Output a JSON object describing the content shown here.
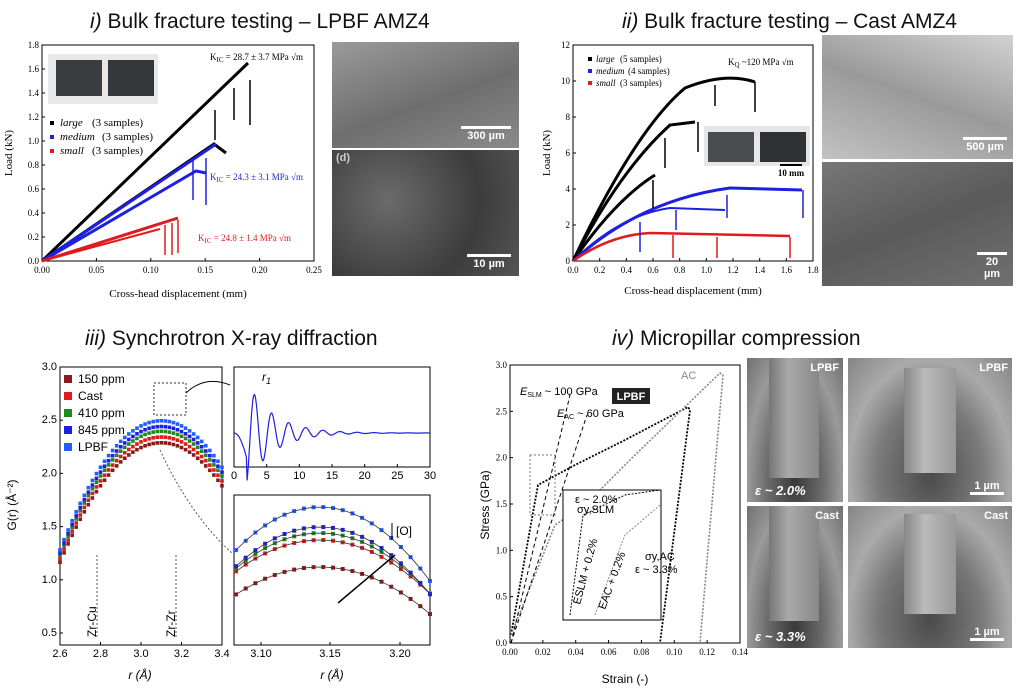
{
  "titles": {
    "p1_num": "i)",
    "p1_text": "Bulk fracture testing – LPBF AMZ4",
    "p2_num": "ii)",
    "p2_text": "Bulk fracture testing – Cast AMZ4",
    "p3_num": "iii)",
    "p3_text": "Synchrotron X-ray diffraction",
    "p4_num": "iv)",
    "p4_text": "Micropillar compression"
  },
  "panel1": {
    "xlabel": "Cross-head displacement (mm)",
    "ylabel": "Load (kN)",
    "xticks": [
      "0.00",
      "0.05",
      "0.10",
      "0.15",
      "0.20",
      "0.25"
    ],
    "yticks": [
      "0.0",
      "0.2",
      "0.4",
      "0.6",
      "0.8",
      "1.0",
      "1.2",
      "1.4",
      "1.6",
      "1.8"
    ],
    "legend": [
      {
        "name": "large",
        "suffix": " (3 samples)",
        "color": "#000000"
      },
      {
        "name": "medium",
        "suffix": " (3 samples)",
        "color": "#1f1fe0"
      },
      {
        "name": "small",
        "suffix": " (3 samples)",
        "color": "#e01b1b"
      }
    ],
    "k1_large": "K",
    "k1_large_sub": "IC",
    "k1_large_val": " = 28.7 ± 3.7 MPa √m",
    "k1_medium_val": " = 24.3 ± 3.1 MPa √m",
    "k1_small_val": " = 24.8 ± 1.4 MPa √m",
    "sem_top_scale": "300 µm",
    "sem_bottom_scale": "10 µm",
    "sem_bottom_tag": "(d)"
  },
  "panel2": {
    "xlabel": "Cross-head displacement (mm)",
    "ylabel": "Load (kN)",
    "xticks": [
      "0.0",
      "0.2",
      "0.4",
      "0.6",
      "0.8",
      "1.0",
      "1.2",
      "1.4",
      "1.6",
      "1.8"
    ],
    "yticks": [
      "0",
      "2",
      "4",
      "6",
      "8",
      "10",
      "12"
    ],
    "legend": [
      {
        "name": "large",
        "suffix": " (5 samples)",
        "color": "#000000"
      },
      {
        "name": "medium",
        "suffix": " (4 samples)",
        "color": "#1f1fe0"
      },
      {
        "name": "small",
        "suffix": " (3 samples)",
        "color": "#e01b1b"
      }
    ],
    "kq": "K",
    "kq_sub": "Q",
    "kq_val": " ~120 MPa √m",
    "photo_scale": "10 mm",
    "sem_top_scale": "500 µm",
    "sem_bottom_scale": "20 µm"
  },
  "panel3": {
    "xlabel": "r (Å)",
    "ylabel": "G(r) (Å⁻²)",
    "xticks": [
      "2.6",
      "2.8",
      "3.0",
      "3.2",
      "3.4"
    ],
    "yticks": [
      "0.5",
      "1.0",
      "1.5",
      "2.0",
      "2.5",
      "3.0"
    ],
    "legend": [
      {
        "name": "150 ppm",
        "color": "#8b1a1a"
      },
      {
        "name": "Cast",
        "color": "#e01b1b"
      },
      {
        "name": "410 ppm",
        "color": "#1f8a1f"
      },
      {
        "name": "845 ppm",
        "color": "#1f1fe0"
      },
      {
        "name": "LPBF",
        "color": "#1f5fff"
      }
    ],
    "zrcu": "Zr-Cu",
    "zrzr": "Zr-Zr",
    "inset_top_xticks": [
      "0",
      "5",
      "10",
      "15",
      "20",
      "25",
      "30"
    ],
    "r1": "r",
    "r1_sub": "1",
    "inset_bottom_xticks": [
      "3.10",
      "3.15",
      "3.20"
    ],
    "inset_bottom_xlabel": "r (Å)",
    "oxygen": "[O]"
  },
  "panel4": {
    "xlabel": "Strain (-)",
    "ylabel": "Stress (GPa)",
    "xticks": [
      "0.00",
      "0.02",
      "0.04",
      "0.06",
      "0.08",
      "0.10",
      "0.12",
      "0.14"
    ],
    "yticks": [
      "0.0",
      "0.5",
      "1.0",
      "1.5",
      "2.0",
      "2.5",
      "3.0"
    ],
    "lpbf_box": "LPBF",
    "ac_label": "AC",
    "e_slm": "E",
    "e_slm_sub": "SLM",
    "e_slm_val": " ~ 100 GPa",
    "e_ac": "E",
    "e_ac_sub": "AC",
    "e_ac_val": " ~ 60 GPa",
    "inset_eps1": "ε ~ 2.0%",
    "inset_sy_slm": "σy,SLM",
    "inset_eslm_off": "ESLM + 0.2%",
    "inset_eac_off": "EAC + 0.2%",
    "inset_sy_ac": "σy,AC",
    "inset_eps2": "ε ~ 3.3%",
    "img_tl_tag": "LPBF",
    "img_tr_tag": "LPBF",
    "img_bl_tag": "Cast",
    "img_br_tag": "Cast",
    "img_tl_eps": "ε ~ 2.0%",
    "img_bl_eps": "ε ~ 3.3%",
    "img_tr_scale": "1 µm",
    "img_br_scale": "1 µm"
  }
}
